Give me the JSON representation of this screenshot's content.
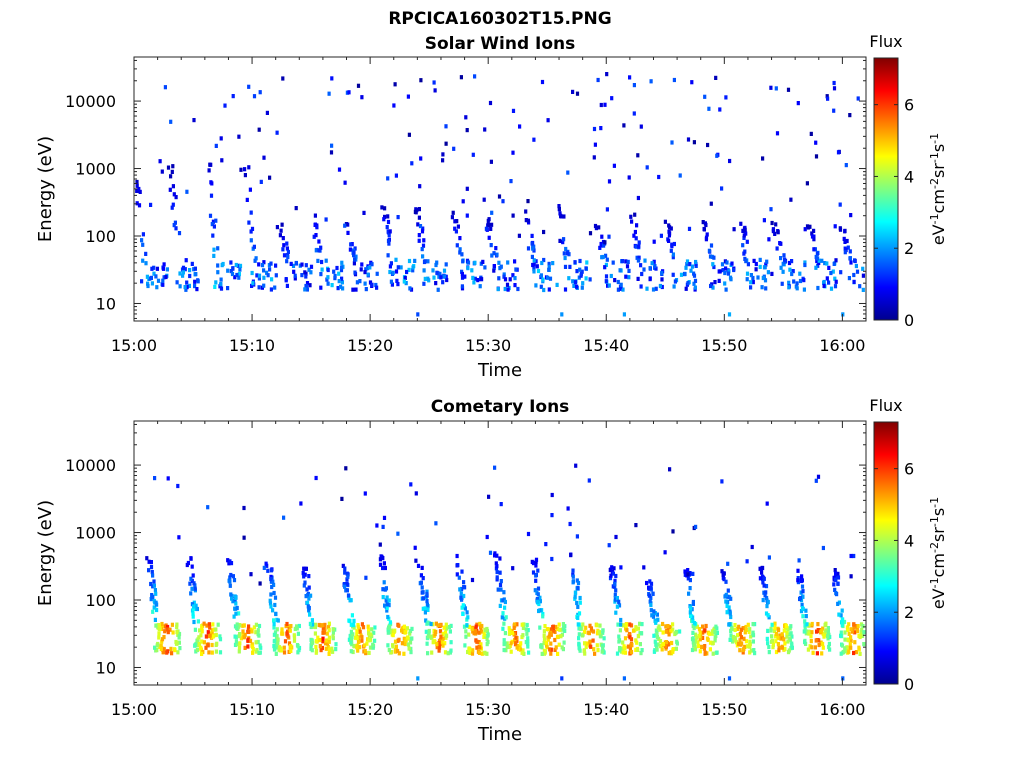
{
  "figure_title": "RPCICA160302T15.PNG",
  "chart_data": [
    {
      "type": "heatmap",
      "title": "Solar Wind Ions",
      "xlabel": "Time",
      "ylabel": "Energy (eV)",
      "x_ticks": [
        "15:00",
        "15:10",
        "15:20",
        "15:30",
        "15:40",
        "15:50",
        "16:00"
      ],
      "y_ticks": [
        "10",
        "100",
        "1000",
        "10000"
      ],
      "y_scale": "log",
      "xlim_minutes": [
        0,
        62
      ],
      "ylim_eV": [
        5.5,
        45000
      ],
      "colorbar": {
        "label": "Flux",
        "unit_label": "eV-1cm-2sr-1s-1",
        "range": [
          0,
          7.3
        ],
        "ticks": [
          "0",
          "2",
          "4",
          "6"
        ]
      },
      "cycles": [
        {
          "t": 1.6,
          "peak_flux": 2.4,
          "high_e": 900
        },
        {
          "t": 4.6,
          "peak_flux": 2.2,
          "high_e": 1200
        },
        {
          "t": 7.8,
          "peak_flux": 2.6,
          "high_e": 1300
        },
        {
          "t": 10.9,
          "peak_flux": 2.4,
          "high_e": 1500
        },
        {
          "t": 13.8,
          "peak_flux": 2.0,
          "high_e": 160
        },
        {
          "t": 16.6,
          "peak_flux": 2.4,
          "high_e": 250
        },
        {
          "t": 19.5,
          "peak_flux": 2.2,
          "high_e": 200
        },
        {
          "t": 22.6,
          "peak_flux": 2.5,
          "high_e": 300
        },
        {
          "t": 25.4,
          "peak_flux": 2.4,
          "high_e": 300
        },
        {
          "t": 28.6,
          "peak_flux": 2.3,
          "high_e": 250
        },
        {
          "t": 31.4,
          "peak_flux": 2.2,
          "high_e": 200
        },
        {
          "t": 34.6,
          "peak_flux": 2.5,
          "high_e": 250
        },
        {
          "t": 37.5,
          "peak_flux": 2.4,
          "high_e": 350
        },
        {
          "t": 40.7,
          "peak_flux": 2.3,
          "high_e": 180
        },
        {
          "t": 43.6,
          "peak_flux": 2.2,
          "high_e": 250
        },
        {
          "t": 46.6,
          "peak_flux": 2.3,
          "high_e": 180
        },
        {
          "t": 49.8,
          "peak_flux": 2.2,
          "high_e": 200
        },
        {
          "t": 52.8,
          "peak_flux": 2.3,
          "high_e": 200
        },
        {
          "t": 55.7,
          "peak_flux": 2.2,
          "high_e": 170
        },
        {
          "t": 58.7,
          "peak_flux": 2.3,
          "high_e": 150
        },
        {
          "t": 61.4,
          "peak_flux": 2.2,
          "high_e": 150
        }
      ]
    },
    {
      "type": "heatmap",
      "title": "Cometary Ions",
      "xlabel": "Time",
      "ylabel": "Energy (eV)",
      "x_ticks": [
        "15:00",
        "15:10",
        "15:20",
        "15:30",
        "15:40",
        "15:50",
        "16:00"
      ],
      "y_ticks": [
        "10",
        "100",
        "1000",
        "10000"
      ],
      "y_scale": "log",
      "xlim_minutes": [
        0,
        62
      ],
      "ylim_eV": [
        5.5,
        45000
      ],
      "colorbar": {
        "label": "Flux",
        "unit_label": "eV-1cm-2sr-1s-1",
        "range": [
          0,
          7.3
        ],
        "ticks": [
          "0",
          "2",
          "4",
          "6"
        ]
      },
      "cycles": [
        {
          "t": 2.7,
          "peak_flux": 6.8,
          "high_e": 450
        },
        {
          "t": 6.1,
          "peak_flux": 6.4,
          "high_e": 450
        },
        {
          "t": 9.5,
          "peak_flux": 6.3,
          "high_e": 550
        },
        {
          "t": 12.8,
          "peak_flux": 6.2,
          "high_e": 450
        },
        {
          "t": 15.9,
          "peak_flux": 6.4,
          "high_e": 350
        },
        {
          "t": 19.2,
          "peak_flux": 6.2,
          "high_e": 450
        },
        {
          "t": 22.4,
          "peak_flux": 6.3,
          "high_e": 500
        },
        {
          "t": 25.7,
          "peak_flux": 6.2,
          "high_e": 400
        },
        {
          "t": 28.9,
          "peak_flux": 6.4,
          "high_e": 500
        },
        {
          "t": 32.2,
          "peak_flux": 6.2,
          "high_e": 550
        },
        {
          "t": 35.3,
          "peak_flux": 6.4,
          "high_e": 450
        },
        {
          "t": 38.6,
          "peak_flux": 6.3,
          "high_e": 550
        },
        {
          "t": 41.9,
          "peak_flux": 6.2,
          "high_e": 350
        },
        {
          "t": 45.0,
          "peak_flux": 6.1,
          "high_e": 250
        },
        {
          "t": 48.2,
          "peak_flux": 6.4,
          "high_e": 400
        },
        {
          "t": 51.4,
          "peak_flux": 6.2,
          "high_e": 300
        },
        {
          "t": 54.6,
          "peak_flux": 6.1,
          "high_e": 350
        },
        {
          "t": 57.7,
          "peak_flux": 6.5,
          "high_e": 300
        },
        {
          "t": 60.8,
          "peak_flux": 6.2,
          "high_e": 300
        }
      ]
    }
  ]
}
